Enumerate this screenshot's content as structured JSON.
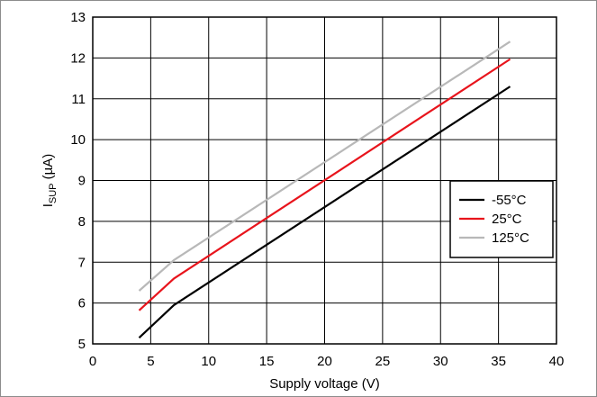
{
  "chart_data": {
    "type": "line",
    "title": "",
    "xlabel": "Supply voltage (V)",
    "ylabel_main": "I",
    "ylabel_sub": "SUP",
    "ylabel_unit": " (µA)",
    "xlim": [
      0,
      40
    ],
    "ylim": [
      5,
      13
    ],
    "xticks": [
      0,
      5,
      10,
      15,
      20,
      25,
      30,
      35,
      40
    ],
    "yticks": [
      5,
      6,
      7,
      8,
      9,
      10,
      11,
      12,
      13
    ],
    "grid": true,
    "legend_position": "right",
    "series": [
      {
        "name": "-55°C",
        "color": "#000000",
        "x": [
          4,
          7,
          36
        ],
        "y": [
          5.15,
          5.95,
          11.3
        ]
      },
      {
        "name": "25°C",
        "color": "#e8141c",
        "x": [
          4,
          7,
          36
        ],
        "y": [
          5.82,
          6.6,
          11.97
        ]
      },
      {
        "name": "125°C",
        "color": "#b8b8b8",
        "x": [
          4,
          7,
          36
        ],
        "y": [
          6.3,
          7.05,
          12.4
        ]
      }
    ]
  }
}
